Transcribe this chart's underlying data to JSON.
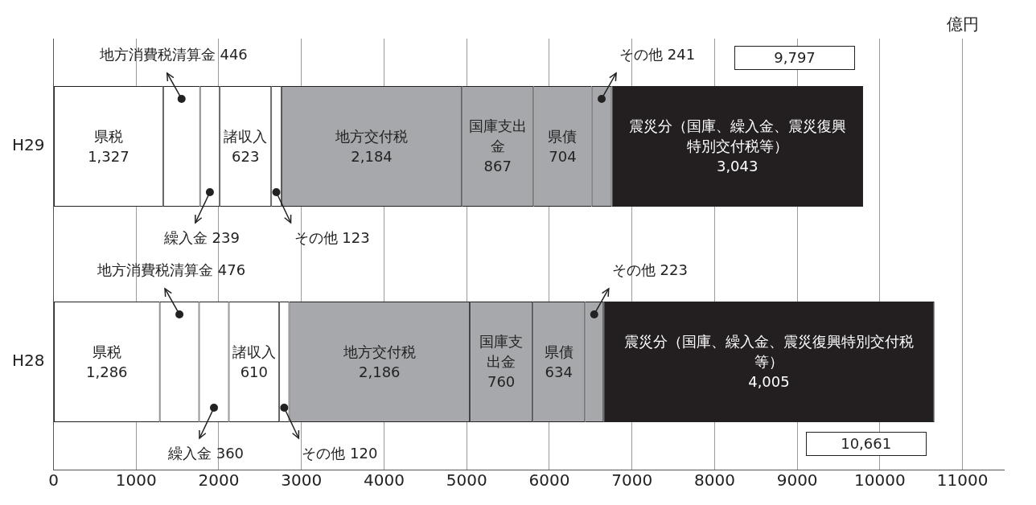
{
  "chart_data": {
    "type": "bar",
    "orientation": "horizontal",
    "stacked": true,
    "xlabel": "億円",
    "categories": [
      "H29",
      "H28"
    ],
    "xlim": [
      0,
      11500
    ],
    "xticks": [
      0,
      1000,
      2000,
      3000,
      4000,
      5000,
      6000,
      7000,
      8000,
      9000,
      10000,
      11000
    ],
    "grid": "x",
    "legend": false,
    "totals": [
      "9,797",
      "10,661"
    ],
    "series": [
      {
        "name": "県税",
        "color": "#ffffff",
        "values": [
          1327,
          1286
        ],
        "value_labels": [
          "1,327",
          "1,286"
        ]
      },
      {
        "name": "地方消費税清算金",
        "color": "#ffffff",
        "values": [
          446,
          476
        ],
        "value_labels": [
          "446",
          "476"
        ]
      },
      {
        "name": "繰入金",
        "color": "#ffffff",
        "values": [
          239,
          360
        ],
        "value_labels": [
          "239",
          "360"
        ]
      },
      {
        "name": "諸収入",
        "color": "#ffffff",
        "values": [
          623,
          610
        ],
        "value_labels": [
          "623",
          "610"
        ]
      },
      {
        "name": "その他",
        "color": "#ffffff",
        "values": [
          123,
          120
        ],
        "value_labels": [
          "123",
          "120"
        ]
      },
      {
        "name": "地方交付税",
        "color": "#a7a8ab",
        "values": [
          2184,
          2186
        ],
        "value_labels": [
          "2,184",
          "2,186"
        ]
      },
      {
        "name": "国庫支出金",
        "color": "#a7a8ab",
        "values": [
          867,
          760
        ],
        "value_labels": [
          "867",
          "760"
        ]
      },
      {
        "name": "県債",
        "color": "#a7a8ab",
        "values": [
          704,
          634
        ],
        "value_labels": [
          "704",
          "634"
        ]
      },
      {
        "name": "その他",
        "color": "#a7a8ab",
        "values": [
          241,
          223
        ],
        "value_labels": [
          "241",
          "223"
        ]
      },
      {
        "name": "震災分（国庫、繰入金、震災復興特別交付税等）",
        "color": "#231f20",
        "values": [
          3043,
          4005
        ],
        "value_labels": [
          "3,043",
          "4,005"
        ]
      }
    ]
  }
}
